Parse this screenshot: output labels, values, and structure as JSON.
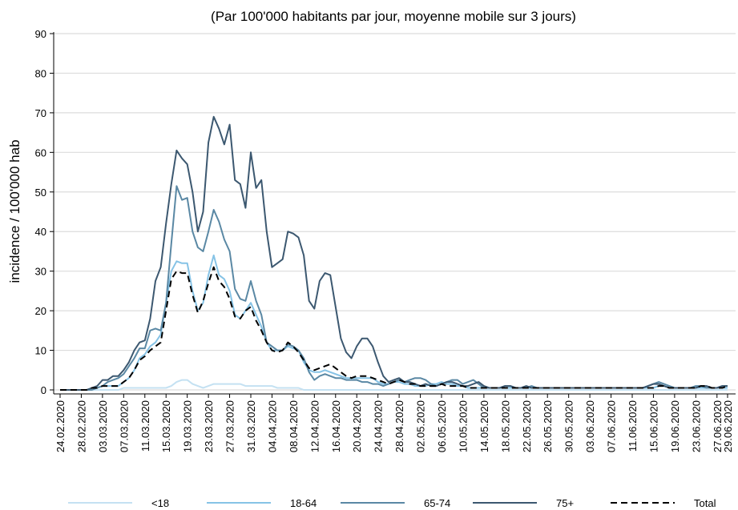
{
  "chart_data": {
    "type": "line",
    "title": "(Par 100'000 habitants par jour, moyenne mobile sur 3 jours)",
    "y_label": "incidence / 100'000 hab",
    "categories": [
      "24.02.2020",
      null,
      null,
      null,
      "28.02.2020",
      null,
      null,
      null,
      "03.03.2020",
      null,
      null,
      null,
      "07.03.2020",
      null,
      null,
      null,
      "11.03.2020",
      null,
      null,
      null,
      "15.03.2020",
      null,
      null,
      null,
      "19.03.2020",
      null,
      null,
      null,
      "23.03.2020",
      null,
      null,
      null,
      "27.03.2020",
      null,
      null,
      null,
      "31.03.2020",
      null,
      null,
      null,
      "04.04.2020",
      null,
      null,
      null,
      "08.04.2020",
      null,
      null,
      null,
      "12.04.2020",
      null,
      null,
      null,
      "16.04.2020",
      null,
      null,
      null,
      "20.04.2020",
      null,
      null,
      null,
      "24.04.2020",
      null,
      null,
      null,
      "28.04.2020",
      null,
      null,
      null,
      "02.05.2020",
      null,
      null,
      null,
      "06.05.2020",
      null,
      null,
      null,
      "10.05.2020",
      null,
      null,
      null,
      "14.05.2020",
      null,
      null,
      null,
      "18.05.2020",
      null,
      null,
      null,
      "22.05.2020",
      null,
      null,
      null,
      "26.05.2020",
      null,
      null,
      null,
      "30.05.2020",
      null,
      null,
      null,
      "03.06.2020",
      null,
      null,
      null,
      "07.06.2020",
      null,
      null,
      null,
      "11.06.2020",
      null,
      null,
      null,
      "15.06.2020",
      null,
      null,
      null,
      "19.06.2020",
      null,
      null,
      null,
      "23.06.2020",
      null,
      null,
      null,
      "27.06.2020",
      null,
      "29.06.2020"
    ],
    "series": [
      {
        "name": "<18",
        "color": "#c4e1f2",
        "values": [
          0,
          0,
          0,
          0,
          0,
          0,
          0,
          0,
          0,
          0,
          0,
          0,
          0.5,
          0.5,
          0.5,
          0.5,
          0.5,
          0.5,
          0.5,
          0.5,
          0.5,
          1,
          2,
          2.5,
          2.5,
          1.5,
          1,
          0.5,
          1,
          1.5,
          1.5,
          1.5,
          1.5,
          1.5,
          1.5,
          1,
          1,
          1,
          1,
          1,
          1,
          0.5,
          0.5,
          0.5,
          0.5,
          0.5,
          0,
          0,
          0,
          0,
          0,
          0,
          0,
          0,
          0,
          0,
          0,
          0,
          0,
          0,
          0,
          0,
          0,
          0,
          0,
          0,
          0,
          0,
          0,
          0,
          0,
          0,
          0,
          0,
          0,
          0,
          0,
          0,
          0,
          0,
          0,
          0,
          0,
          0,
          0,
          0,
          0,
          0,
          0,
          0,
          0,
          0,
          0,
          0,
          0,
          0,
          0,
          0,
          0,
          0,
          0,
          0,
          0,
          0,
          0,
          0,
          0,
          0,
          0,
          0,
          0,
          0,
          0,
          0,
          0,
          0,
          0,
          0,
          0,
          0,
          0,
          0,
          0,
          0,
          0,
          0,
          0
        ]
      },
      {
        "name": "18-64",
        "color": "#86c3e6",
        "values": [
          0,
          0,
          0,
          0,
          0,
          0,
          0.5,
          0.5,
          1,
          1,
          1,
          1,
          2,
          3,
          5,
          8,
          9,
          11,
          12,
          14,
          22,
          30,
          32.5,
          32,
          32,
          25,
          20,
          22,
          29,
          34,
          29,
          28,
          25,
          19,
          18,
          20,
          22,
          19,
          16,
          12,
          10,
          10,
          10,
          11,
          10.5,
          10,
          7,
          5,
          4.5,
          4.5,
          5,
          4.5,
          4,
          3.5,
          3,
          3,
          3,
          3,
          3,
          3,
          2,
          1.5,
          1.5,
          2,
          2,
          1.5,
          1.5,
          1,
          1,
          1,
          1.5,
          1.5,
          2,
          1.5,
          1.5,
          1,
          1,
          0.5,
          0.5,
          0.5,
          0.5,
          0.5,
          0.5,
          0.5,
          0.5,
          0.5,
          0.5,
          0.5,
          0.5,
          0.5,
          0.5,
          0.5,
          0.5,
          0.5,
          0.5,
          0.5,
          0.5,
          0.5,
          0.5,
          0.5,
          0.5,
          0.5,
          0.5,
          0.5,
          0.5,
          0.5,
          0.5,
          0.5,
          0.5,
          0.5,
          0.5,
          0.5,
          0.5,
          1,
          1,
          0.5,
          0.5,
          0.5,
          0.5,
          0.5,
          0.5,
          0.5,
          0.5,
          0.5,
          0.5,
          0.5,
          0.5
        ]
      },
      {
        "name": "65-74",
        "color": "#5a88a4",
        "values": [
          0,
          0,
          0,
          0,
          0,
          0,
          0,
          0.5,
          1,
          2,
          2.5,
          3,
          4,
          6,
          8,
          10.5,
          10.5,
          15,
          15.5,
          15,
          22,
          37,
          51.5,
          48,
          48.5,
          40,
          36,
          35,
          40,
          45.5,
          42.5,
          38,
          35,
          25.5,
          23,
          22.5,
          27.5,
          22.5,
          19,
          12,
          11,
          10,
          10,
          11.5,
          11,
          10,
          8,
          4.5,
          2.5,
          3.5,
          4,
          3.5,
          3,
          3,
          2.5,
          2.5,
          2.5,
          2,
          2,
          1.5,
          1.5,
          1,
          1.5,
          2,
          2.5,
          2,
          2.5,
          3,
          3,
          2.5,
          1.5,
          1,
          1.5,
          2,
          2.5,
          2.5,
          1.5,
          2,
          2.5,
          1.5,
          0.5,
          0.5,
          0.5,
          0.5,
          1,
          1,
          0.5,
          0.5,
          0.5,
          1,
          0.5,
          0.5,
          0.5,
          0.5,
          0.5,
          0.5,
          0.5,
          0.5,
          0.5,
          0.5,
          0.5,
          0.5,
          0.5,
          0.5,
          0.5,
          0.5,
          0.5,
          0.5,
          0.5,
          0.5,
          0.5,
          1,
          1.5,
          2,
          1.5,
          1,
          0.5,
          0.5,
          0.5,
          0.5,
          1,
          1,
          0.5,
          0.5,
          0.5,
          1,
          1
        ]
      },
      {
        "name": "75+",
        "color": "#3c5870",
        "values": [
          0,
          0,
          0,
          0,
          0,
          0,
          0.5,
          1,
          2.5,
          2.5,
          3.5,
          3.5,
          5,
          7,
          10,
          12,
          12.5,
          18,
          27.5,
          31,
          42,
          52,
          60.5,
          58.5,
          57,
          50,
          40,
          45,
          62.5,
          69,
          66,
          62,
          67,
          53,
          52,
          46,
          60,
          51,
          53,
          40,
          31,
          32,
          33,
          40,
          39.5,
          38.5,
          34,
          22.5,
          20.5,
          27.5,
          29.5,
          29,
          21,
          13,
          9.5,
          8,
          11,
          13,
          13,
          11,
          7,
          3.5,
          2,
          2.5,
          3,
          2,
          2,
          1.5,
          1,
          1.5,
          1,
          1,
          1.5,
          2,
          2,
          1.5,
          1,
          1,
          1.5,
          2,
          1,
          0.5,
          0.5,
          0.5,
          1,
          1,
          0.5,
          0.5,
          1,
          0.5,
          0.5,
          0.5,
          0.5,
          0.5,
          0.5,
          0.5,
          0.5,
          0.5,
          0.5,
          0.5,
          0.5,
          0.5,
          0.5,
          0.5,
          0.5,
          0.5,
          0.5,
          0.5,
          0.5,
          0.5,
          0.5,
          1,
          1.5,
          1.5,
          1,
          0.5,
          0.5,
          0.5,
          0.5,
          0.5,
          0.5,
          1,
          1,
          0.5,
          0.5,
          1,
          1
        ]
      },
      {
        "name": "Total",
        "color": "#000000",
        "dashed": true,
        "values": [
          0,
          0,
          0,
          0,
          0,
          0,
          0.5,
          0.5,
          1,
          1,
          1,
          1,
          2,
          3,
          5,
          7.5,
          8.5,
          10,
          11,
          12,
          20,
          28,
          30,
          29.5,
          29.5,
          24,
          19.5,
          22.5,
          27,
          31,
          27.5,
          26,
          23,
          18.5,
          18,
          20,
          21,
          17.5,
          15,
          12,
          10,
          9.5,
          10,
          12,
          11,
          9.5,
          7.5,
          5.5,
          5,
          5.5,
          6,
          6.5,
          5.5,
          4.5,
          3.5,
          3,
          3.5,
          3.5,
          3.5,
          3,
          2.5,
          2,
          1.5,
          2,
          2.5,
          2,
          1.5,
          1.5,
          1,
          1,
          1,
          1,
          1.5,
          1,
          1,
          1,
          1,
          0.5,
          0.5,
          0.5,
          0.5,
          0.5,
          0.5,
          0.5,
          0.5,
          0.5,
          0.5,
          0.5,
          0.5,
          0.5,
          0.5,
          0.5,
          0.5,
          0.5,
          0.5,
          0.5,
          0.5,
          0.5,
          0.5,
          0.5,
          0.5,
          0.5,
          0.5,
          0.5,
          0.5,
          0.5,
          0.5,
          0.5,
          0.5,
          0.5,
          0.5,
          0.5,
          0.5,
          1,
          1,
          0.5,
          0.5,
          0.5,
          0.5,
          0.5,
          0.5,
          1,
          1,
          0.5,
          0.5,
          0.5,
          1
        ]
      }
    ],
    "ylim": [
      0,
      90
    ],
    "yticks": [
      0,
      10,
      20,
      30,
      40,
      50,
      60,
      70,
      80,
      90
    ],
    "grid": true
  }
}
